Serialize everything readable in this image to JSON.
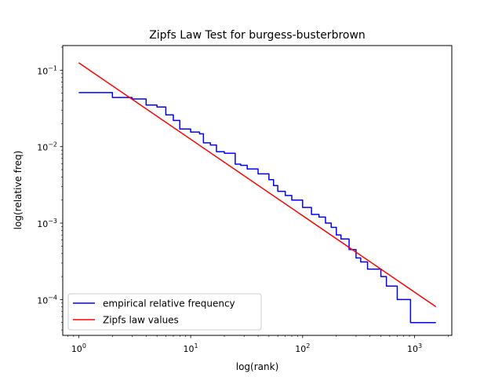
{
  "chart_data": {
    "type": "line",
    "title": "Zipfs Law Test for burgess-busterbrown",
    "xlabel": "log(rank)",
    "ylabel": "log(relative freq)",
    "xscale": "log",
    "yscale": "log",
    "xlim": [
      0.72,
      2150
    ],
    "ylim": [
      3.4e-05,
      0.21
    ],
    "grid": false,
    "legend_position": "lower-left",
    "x_ticks": [
      {
        "value": 1,
        "base": "10",
        "exp": "0"
      },
      {
        "value": 10,
        "base": "10",
        "exp": "1"
      },
      {
        "value": 100,
        "base": "10",
        "exp": "2"
      },
      {
        "value": 1000,
        "base": "10",
        "exp": "3"
      }
    ],
    "y_ticks": [
      {
        "value": 0.0001,
        "base": "10",
        "exp": "−4"
      },
      {
        "value": 0.001,
        "base": "10",
        "exp": "−3"
      },
      {
        "value": 0.01,
        "base": "10",
        "exp": "−2"
      },
      {
        "value": 0.1,
        "base": "10",
        "exp": "−1"
      }
    ],
    "series": [
      {
        "name": "empirical relative frequency",
        "color": "#0000ff",
        "x": [
          1,
          2,
          3,
          4,
          5,
          6,
          7,
          8,
          10,
          12,
          13,
          15,
          17,
          20,
          25,
          28,
          32,
          40,
          50,
          55,
          60,
          70,
          80,
          100,
          120,
          140,
          160,
          180,
          200,
          220,
          260,
          300,
          330,
          380,
          440,
          500,
          560,
          700,
          920,
          1550
        ],
        "y": [
          0.051,
          0.044,
          0.042,
          0.035,
          0.033,
          0.026,
          0.022,
          0.017,
          0.0155,
          0.0147,
          0.0112,
          0.0105,
          0.0086,
          0.0082,
          0.0059,
          0.0057,
          0.0051,
          0.0044,
          0.0037,
          0.0031,
          0.0026,
          0.0023,
          0.002,
          0.0016,
          0.0013,
          0.0012,
          0.001,
          0.00088,
          0.0007,
          0.00062,
          0.00045,
          0.00035,
          0.00031,
          0.00025,
          0.00025,
          0.0002,
          0.00015,
          0.0001,
          5e-05,
          5e-05
        ],
        "step": true
      },
      {
        "name": "Zipfs law values",
        "color": "#ff0000",
        "x": [
          1,
          1550
        ],
        "y": [
          0.125,
          8.06e-05
        ]
      }
    ]
  }
}
